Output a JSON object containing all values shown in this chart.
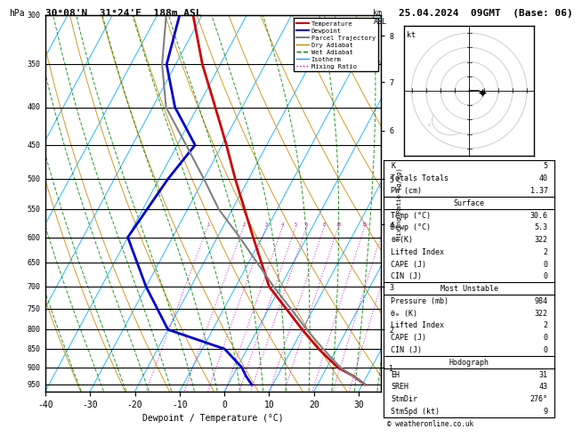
{
  "title_left": "30°08'N  31°24'E  188m ASL",
  "title_right": "25.04.2024  09GMT  (Base: 06)",
  "xlabel": "Dewpoint / Temperature (°C)",
  "ylabel_left": "hPa",
  "ylabel_right_km": "km\nASL",
  "ylabel_right_mix": "Mixing Ratio (g/kg)",
  "pressure_major": [
    300,
    350,
    400,
    450,
    500,
    550,
    600,
    650,
    700,
    750,
    800,
    850,
    900,
    950
  ],
  "temp_ticks": [
    -40,
    -30,
    -20,
    -10,
    0,
    10,
    20,
    30
  ],
  "km_ticks": [
    1,
    2,
    3,
    4,
    5,
    6,
    7,
    8
  ],
  "km_pressures": [
    900,
    800,
    700,
    576,
    500,
    430,
    370,
    320
  ],
  "bg_color": "#ffffff",
  "temp_line_color": "#cc0000",
  "dewp_line_color": "#0000cc",
  "parcel_line_color": "#808080",
  "isotherm_color": "#00aaff",
  "dry_adiabat_color": "#cc8800",
  "wet_adiabat_color": "#008800",
  "mixing_ratio_color": "#cc00cc",
  "temperature_data": {
    "pressure": [
      950,
      925,
      900,
      850,
      800,
      700,
      600,
      500,
      450,
      400,
      350,
      300
    ],
    "temp_c": [
      30.6,
      27.0,
      22.4,
      16.0,
      10.0,
      -2.5,
      -12.0,
      -23.0,
      -29.0,
      -36.0,
      -44.0,
      -52.0
    ],
    "dewp_c": [
      5.3,
      3.0,
      1.0,
      -5.0,
      -20.0,
      -30.0,
      -40.0,
      -38.0,
      -36.0,
      -45.0,
      -52.0,
      -55.0
    ]
  },
  "parcel_data": {
    "pressure": [
      950,
      900,
      850,
      800,
      750,
      700,
      650,
      600,
      550,
      500,
      450,
      400,
      350,
      300
    ],
    "temp_c": [
      30.6,
      23.0,
      17.0,
      11.0,
      5.0,
      -1.5,
      -8.0,
      -15.0,
      -23.0,
      -30.0,
      -38.0,
      -47.0,
      -53.0,
      -58.0
    ]
  },
  "table_data": {
    "K": 5,
    "Totals Totals": 40,
    "PW (cm)": 1.37,
    "Surface_Temp": 30.6,
    "Surface_Dewp": 5.3,
    "Surface_ThetaE": 322,
    "Surface_LiftedIndex": 2,
    "Surface_CAPE": 0,
    "Surface_CIN": 0,
    "MU_Pressure": 984,
    "MU_ThetaE": 322,
    "MU_LiftedIndex": 2,
    "MU_CAPE": 0,
    "MU_CIN": 0,
    "Hodo_EH": 31,
    "Hodo_SREH": 43,
    "Hodo_StmDir": 276,
    "Hodo_StmSpd": 9
  }
}
